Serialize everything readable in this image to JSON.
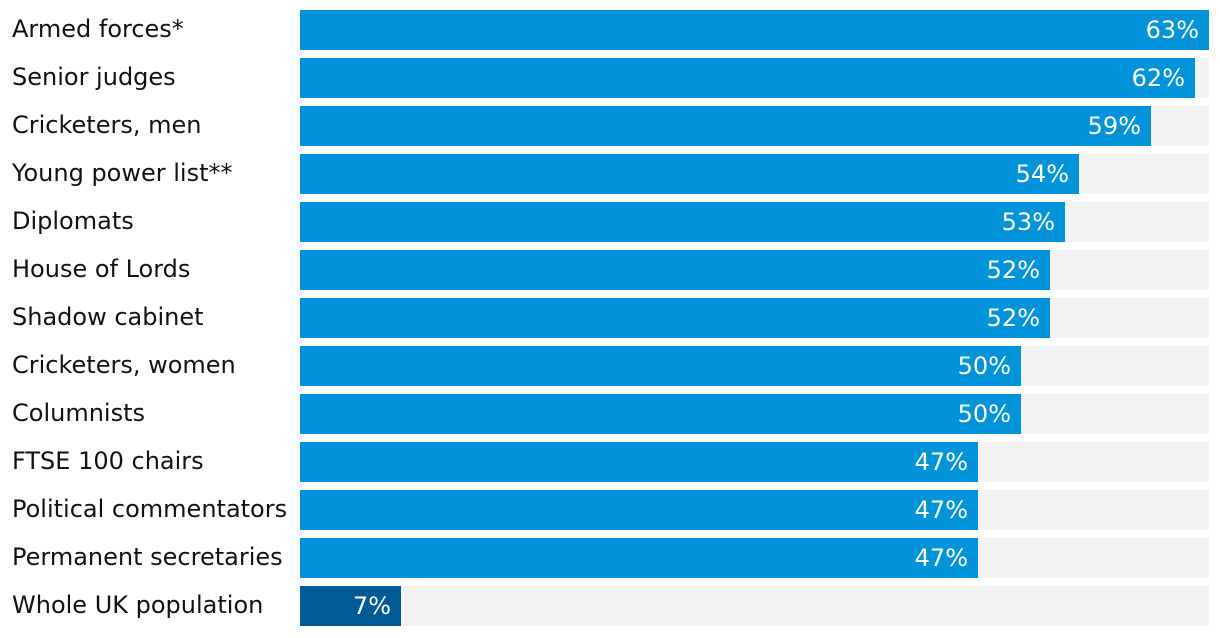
{
  "chart_data": {
    "type": "bar",
    "orientation": "horizontal",
    "title": "",
    "xlabel": "",
    "ylabel": "",
    "xlim": [
      0,
      63
    ],
    "grid": false,
    "unit": "%",
    "colors": {
      "bar": "#0093d9",
      "highlight": "#005a96",
      "track": "#f2f2f2",
      "value_text": "#ffffff",
      "label_text": "#121212"
    },
    "categories": [
      "Armed forces*",
      "Senior judges",
      "Cricketers, men",
      "Young power list**",
      "Diplomats",
      "House of Lords",
      "Shadow cabinet",
      "Cricketers, women",
      "Columnists",
      "FTSE 100 chairs",
      "Political commentators",
      "Permanent secretaries",
      "Whole UK population"
    ],
    "values": [
      63,
      62,
      59,
      54,
      53,
      52,
      52,
      50,
      50,
      47,
      47,
      47,
      7
    ],
    "value_labels": [
      "63%",
      "62%",
      "59%",
      "54%",
      "53%",
      "52%",
      "52%",
      "50%",
      "50%",
      "47%",
      "47%",
      "47%",
      "7%"
    ],
    "highlighted": [
      "Whole UK population"
    ]
  }
}
